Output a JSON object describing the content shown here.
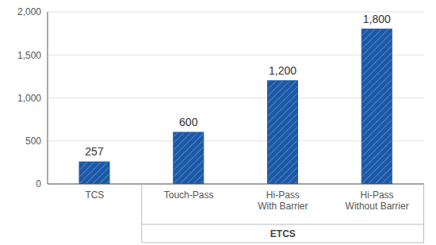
{
  "chart_data": {
    "type": "bar",
    "categories": [
      "TCS",
      "Touch-Pass",
      "Hi-Pass With Barrier",
      "Hi-Pass Without Barrier"
    ],
    "values": [
      257,
      600,
      1200,
      1800
    ],
    "value_labels": [
      "257",
      "600",
      "1,200",
      "1,800"
    ],
    "color": "#1c58a5",
    "ylim": [
      0,
      2000
    ],
    "yticks": [
      0,
      500,
      {
        "value": 1000,
        "label": "1,000"
      },
      {
        "value": 1500,
        "label": "1,500"
      },
      {
        "value": 2000,
        "label": "2,000"
      }
    ],
    "grid": true,
    "data_labels": true,
    "annotations": [
      {
        "text": "ETCS",
        "categories": [
          "Touch-Pass",
          "Hi-Pass With Barrier",
          "Hi-Pass Without Barrier"
        ]
      }
    ]
  }
}
